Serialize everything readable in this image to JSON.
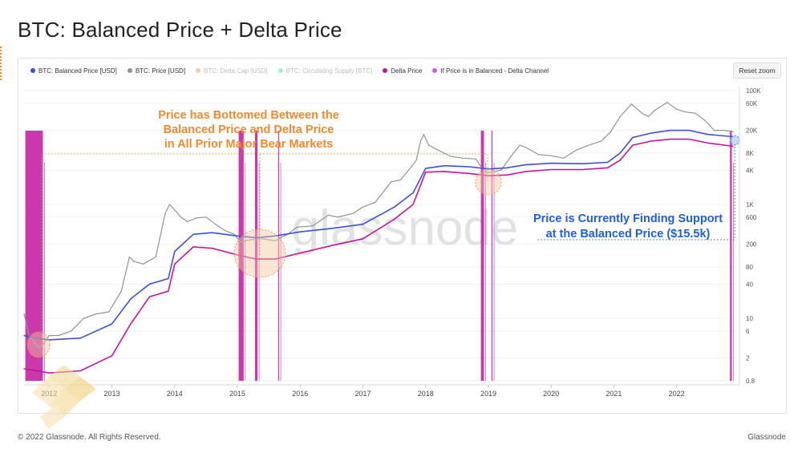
{
  "page": {
    "title": "BTC: Balanced Price + Delta Price",
    "copyright": "© 2022 Glassnode. All Rights Reserved.",
    "brand": "Glassnode",
    "watermark": "glassnode",
    "reset_zoom": "Reset zoom"
  },
  "legend": [
    {
      "label": "BTC: Balanced Price [USD]",
      "color": "#3d4fd6",
      "visible": true
    },
    {
      "label": "BTC: Price [USD]",
      "color": "#8a9597",
      "visible": true
    },
    {
      "label": "BTC: Delta Cap [USD]",
      "color": "#e89a5c",
      "visible": false
    },
    {
      "label": "BTC: Circulating Supply [BTC]",
      "color": "#3fd8bf",
      "visible": false
    },
    {
      "label": "Delta Price",
      "color": "#c2159d",
      "visible": true
    },
    {
      "label": "If Price is in Balanced - Delta Channel",
      "color": "#cf5de0",
      "visible": true
    }
  ],
  "annotations": {
    "bottomed": [
      "Price has Bottomed Between the",
      "Balanced Price and Delta Price",
      "in All Prior Major Bear Markets"
    ],
    "support": [
      "Price is Currently Finding Support",
      "at the Balanced Price ($15.5k)"
    ]
  },
  "chart_data": {
    "type": "line",
    "y_scale": "log",
    "ylim": [
      0.8,
      100000
    ],
    "xlim": [
      2011.6,
      2022.95
    ],
    "x_ticks": [
      2012,
      2013,
      2014,
      2015,
      2016,
      2017,
      2018,
      2019,
      2020,
      2021,
      2022
    ],
    "x_tick_labels": [
      "2012",
      "2013",
      "2014",
      "2015",
      "2016",
      "2017",
      "2018",
      "2019",
      "2020",
      "2021",
      "2022"
    ],
    "y_ticks": [
      0.8,
      2,
      6,
      10,
      40,
      80,
      200,
      600,
      1000,
      4000,
      8000,
      20000,
      60000,
      100000
    ],
    "y_tick_labels": [
      "0.8",
      "2",
      "6",
      "10",
      "40",
      "80",
      "200",
      "600",
      "1K",
      "4K",
      "8K",
      "20K",
      "60K",
      "100K"
    ],
    "grid": true,
    "legend_position": "top",
    "series": [
      {
        "name": "BTC: Price [USD]",
        "color": "#8a9597",
        "x": [
          2011.6,
          2011.68,
          2011.75,
          2011.83,
          2011.9,
          2012.0,
          2012.15,
          2012.35,
          2012.55,
          2012.75,
          2012.95,
          2013.15,
          2013.28,
          2013.35,
          2013.5,
          2013.7,
          2013.85,
          2013.92,
          2014.0,
          2014.1,
          2014.2,
          2014.35,
          2014.5,
          2014.65,
          2014.8,
          2014.95,
          2015.05,
          2015.2,
          2015.4,
          2015.6,
          2015.8,
          2015.95,
          2016.2,
          2016.45,
          2016.6,
          2016.85,
          2017.0,
          2017.2,
          2017.45,
          2017.6,
          2017.75,
          2017.85,
          2017.92,
          2017.97,
          2018.05,
          2018.2,
          2018.4,
          2018.6,
          2018.8,
          2018.93,
          2019.0,
          2019.2,
          2019.4,
          2019.5,
          2019.6,
          2019.8,
          2020.0,
          2020.2,
          2020.4,
          2020.6,
          2020.8,
          2020.95,
          2021.1,
          2021.28,
          2021.45,
          2021.55,
          2021.65,
          2021.85,
          2022.0,
          2022.15,
          2022.3,
          2022.45,
          2022.6,
          2022.75,
          2022.9
        ],
        "values": [
          12,
          5,
          4,
          3,
          3.5,
          5,
          5,
          6,
          10,
          12,
          13,
          30,
          120,
          100,
          90,
          120,
          700,
          1000,
          800,
          600,
          500,
          580,
          600,
          450,
          350,
          300,
          220,
          240,
          250,
          230,
          300,
          400,
          420,
          650,
          600,
          700,
          900,
          1100,
          2500,
          2700,
          4300,
          6000,
          13000,
          17000,
          11000,
          9000,
          7000,
          6500,
          6300,
          3800,
          3600,
          4000,
          8000,
          11000,
          10000,
          7500,
          7200,
          6500,
          9000,
          11000,
          13000,
          19000,
          35000,
          58000,
          40000,
          35000,
          45000,
          62000,
          47000,
          42000,
          40000,
          30000,
          20000,
          20000,
          19000
        ]
      },
      {
        "name": "BTC: Balanced Price [USD]",
        "color": "#3d4fd6",
        "x": [
          2011.6,
          2011.8,
          2012.0,
          2012.5,
          2013.0,
          2013.3,
          2013.6,
          2013.9,
          2014.0,
          2014.3,
          2014.6,
          2015.0,
          2015.3,
          2015.6,
          2016.0,
          2016.5,
          2017.0,
          2017.5,
          2017.8,
          2018.0,
          2018.3,
          2018.7,
          2019.0,
          2019.3,
          2019.6,
          2020.0,
          2020.5,
          2020.9,
          2021.1,
          2021.3,
          2021.6,
          2021.9,
          2022.2,
          2022.5,
          2022.9
        ],
        "values": [
          5,
          4.5,
          4.2,
          4.5,
          8,
          22,
          40,
          50,
          150,
          300,
          320,
          280,
          260,
          280,
          330,
          380,
          450,
          900,
          1600,
          4300,
          4800,
          4600,
          4200,
          4400,
          5000,
          5300,
          5200,
          5500,
          8000,
          15000,
          18000,
          20000,
          20000,
          17000,
          15500
        ]
      },
      {
        "name": "Delta Price",
        "color": "#c2159d",
        "x": [
          2011.6,
          2011.8,
          2012.0,
          2012.5,
          2013.0,
          2013.3,
          2013.6,
          2013.9,
          2014.0,
          2014.3,
          2014.6,
          2015.0,
          2015.3,
          2015.6,
          2016.0,
          2016.5,
          2017.0,
          2017.5,
          2017.8,
          2018.0,
          2018.3,
          2018.7,
          2019.0,
          2019.3,
          2019.6,
          2020.0,
          2020.5,
          2020.9,
          2021.1,
          2021.3,
          2021.6,
          2021.9,
          2022.2,
          2022.5,
          2022.9
        ],
        "values": [
          1.3,
          1.2,
          1.1,
          1.2,
          2.2,
          8,
          24,
          30,
          90,
          180,
          170,
          130,
          110,
          110,
          140,
          190,
          250,
          550,
          1000,
          3700,
          3800,
          3500,
          3200,
          3300,
          3800,
          4100,
          4100,
          4400,
          6000,
          11000,
          13000,
          14000,
          14000,
          12000,
          10500
        ]
      }
    ],
    "channel_periods": [
      {
        "x0": 2011.62,
        "x1": 2011.9
      },
      {
        "x0": 2015.02,
        "x1": 2015.1
      },
      {
        "x0": 2015.28,
        "x1": 2015.32
      },
      {
        "x0": 2015.65,
        "x1": 2015.66
      },
      {
        "x0": 2018.88,
        "x1": 2018.93
      },
      {
        "x0": 2019.05,
        "x1": 2019.06
      },
      {
        "x0": 2022.85,
        "x1": 2022.88
      }
    ]
  }
}
